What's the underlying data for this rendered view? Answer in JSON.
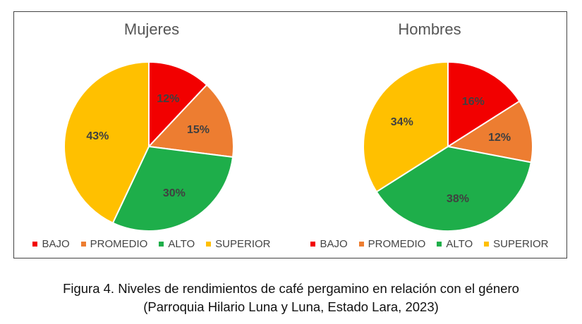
{
  "chart_data": [
    {
      "type": "pie",
      "title": "Mujeres",
      "categories": [
        "BAJO",
        "PROMEDIO",
        "ALTO",
        "SUPERIOR"
      ],
      "values": [
        12,
        15,
        30,
        43
      ],
      "labels": [
        "12%",
        "15%",
        "30%",
        "43%"
      ],
      "colors": [
        "#f20000",
        "#ed7d31",
        "#1eae4a",
        "#ffc000"
      ],
      "legend": "bottom"
    },
    {
      "type": "pie",
      "title": "Hombres",
      "categories": [
        "BAJO",
        "PROMEDIO",
        "ALTO",
        "SUPERIOR"
      ],
      "values": [
        16,
        12,
        38,
        34
      ],
      "labels": [
        "16%",
        "12%",
        "38%",
        "34%"
      ],
      "colors": [
        "#f20000",
        "#ed7d31",
        "#1eae4a",
        "#ffc000"
      ],
      "legend": "bottom"
    }
  ],
  "caption": {
    "line1": "Figura 4. Niveles de rendimientos de café pergamino en relación con el género",
    "line2": "(Parroquia Hilario Luna y Luna, Estado Lara, 2023)"
  }
}
